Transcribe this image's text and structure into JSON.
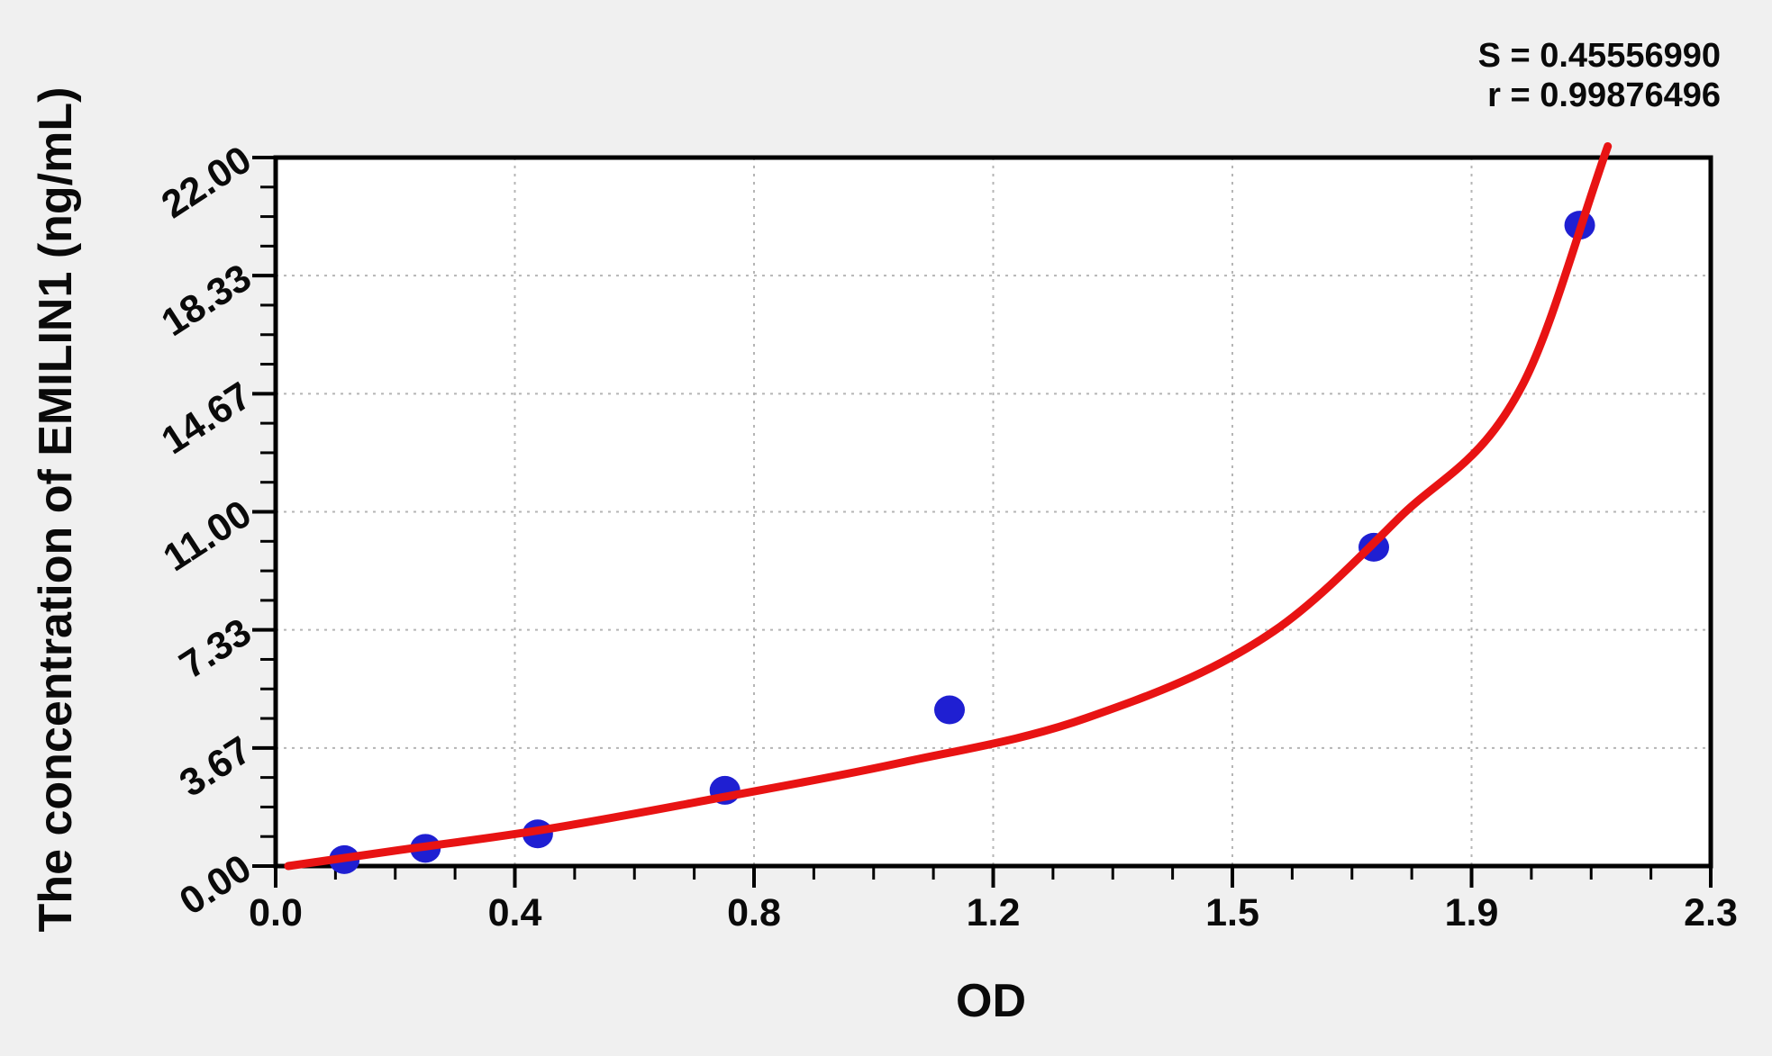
{
  "page": {
    "background": "#f0f0f0"
  },
  "stats": {
    "line1": "S = 0.45556990",
    "line2": "r = 0.99876496"
  },
  "axes": {
    "y_title": "The concentration of EMILIN1 (ng/mL)",
    "x_title": "OD"
  },
  "chart_data": {
    "type": "scatter",
    "title": "",
    "xlabel": "OD",
    "ylabel": "The concentration of EMILIN1 (ng/mL)",
    "xlim": [
      0,
      2.3
    ],
    "ylim": [
      0,
      22
    ],
    "x_tick_labels": [
      "0.0",
      "0.4",
      "0.8",
      "1.2",
      "1.5",
      "1.9",
      "2.3"
    ],
    "y_tick_labels": [
      "0.00",
      "3.67",
      "7.33",
      "11.00",
      "14.67",
      "18.33",
      "22.00"
    ],
    "minor_divisions": 4,
    "grid": true,
    "legend_position": "none",
    "annotations": [
      "S = 0.45556990",
      "r = 0.99876496"
    ],
    "series": [
      {
        "name": "standard-points",
        "type": "scatter",
        "x_is": "OD",
        "y_is": "concentration (ng/mL)",
        "points": [
          [
            0.11,
            0.2
          ],
          [
            0.24,
            0.55
          ],
          [
            0.42,
            1.0
          ],
          [
            0.72,
            2.35
          ],
          [
            1.08,
            4.85
          ],
          [
            1.76,
            9.9
          ],
          [
            2.09,
            19.9
          ]
        ]
      },
      {
        "name": "fitted-curve",
        "type": "line",
        "x_is": "OD",
        "y_is": "concentration (ng/mL)",
        "points": [
          [
            0.02,
            0.0
          ],
          [
            0.2,
            0.5
          ],
          [
            0.42,
            1.1
          ],
          [
            0.72,
            2.15
          ],
          [
            1.0,
            3.2
          ],
          [
            1.3,
            4.6
          ],
          [
            1.6,
            7.3
          ],
          [
            1.8,
            10.8
          ],
          [
            2.0,
            15.0
          ],
          [
            2.135,
            22.35
          ]
        ]
      }
    ],
    "colors": {
      "point": "#1f1fd2",
      "curve": "#e81313",
      "grid": "#b5b5b5",
      "axis": "#000000",
      "plot_bg": "#ffffff",
      "page_bg": "#f0f0f0",
      "text": "#0a0a0a"
    }
  }
}
